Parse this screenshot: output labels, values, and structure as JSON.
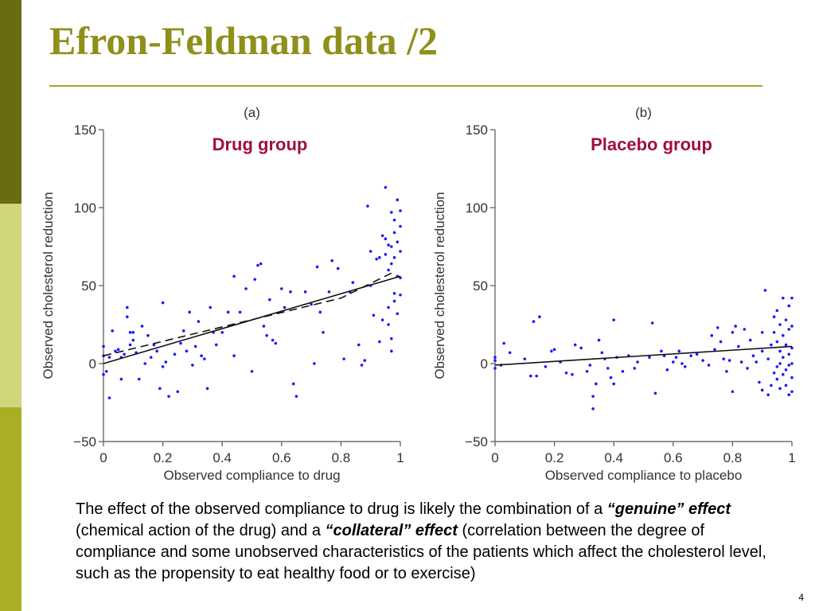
{
  "slide": {
    "title": "Efron-Feldman data /2",
    "page_number": "4",
    "body": {
      "part1": "The effect of the observed compliance to drug is likely the combination of a ",
      "genuine": "“genuine” effect",
      "part2": " (chemical action of the drug) and a ",
      "collateral": "“collateral” effect",
      "part3": " (correlation between the degree of compliance and some unobserved characteristics of the patients which affect the cholesterol level, such as the propensity to eat healthy food or to exercise)"
    },
    "colors": {
      "title": "#8f8f1c",
      "group_label": "#a0103c",
      "points": "#1a1aff",
      "rule": "#a8a22a"
    }
  },
  "chart_data": [
    {
      "type": "scatter",
      "panel": "(a)",
      "group_label": "Drug group",
      "xlabel": "Observed compliance to drug",
      "ylabel": "Observed cholesterol reduction",
      "xlim": [
        0,
        1
      ],
      "ylim": [
        -50,
        150
      ],
      "xticks": [
        "0",
        "0.2",
        "0.4",
        "0.6",
        "0.8",
        "1"
      ],
      "yticks": [
        "−50",
        "0",
        "50",
        "100",
        "150"
      ],
      "fits": [
        {
          "style": "solid",
          "x": [
            0,
            1
          ],
          "y": [
            0,
            56
          ]
        },
        {
          "style": "dashed",
          "x": [
            0,
            0.8,
            0.97
          ],
          "y": [
            5,
            42,
            58
          ]
        }
      ],
      "points": [
        [
          0.0,
          -7
        ],
        [
          0.0,
          5
        ],
        [
          0.0,
          11
        ],
        [
          0.01,
          -5
        ],
        [
          0.02,
          4
        ],
        [
          0.02,
          -22
        ],
        [
          0.03,
          21
        ],
        [
          0.04,
          8
        ],
        [
          0.05,
          9
        ],
        [
          0.06,
          4
        ],
        [
          0.06,
          -10
        ],
        [
          0.07,
          6
        ],
        [
          0.08,
          30
        ],
        [
          0.08,
          36
        ],
        [
          0.09,
          20
        ],
        [
          0.09,
          12
        ],
        [
          0.1,
          15
        ],
        [
          0.1,
          20
        ],
        [
          0.11,
          7
        ],
        [
          0.12,
          -10
        ],
        [
          0.13,
          24
        ],
        [
          0.14,
          0
        ],
        [
          0.15,
          18
        ],
        [
          0.16,
          4
        ],
        [
          0.17,
          12
        ],
        [
          0.18,
          8
        ],
        [
          0.19,
          -16
        ],
        [
          0.2,
          -2
        ],
        [
          0.21,
          1
        ],
        [
          0.22,
          -21
        ],
        [
          0.2,
          39
        ],
        [
          0.24,
          6
        ],
        [
          0.25,
          -18
        ],
        [
          0.26,
          13
        ],
        [
          0.27,
          21
        ],
        [
          0.28,
          8
        ],
        [
          0.29,
          33
        ],
        [
          0.3,
          -1
        ],
        [
          0.31,
          11
        ],
        [
          0.32,
          27
        ],
        [
          0.33,
          5
        ],
        [
          0.34,
          3
        ],
        [
          0.35,
          -16
        ],
        [
          0.36,
          36
        ],
        [
          0.37,
          20
        ],
        [
          0.38,
          12
        ],
        [
          0.4,
          20
        ],
        [
          0.42,
          33
        ],
        [
          0.44,
          5
        ],
        [
          0.44,
          56
        ],
        [
          0.46,
          33
        ],
        [
          0.48,
          48
        ],
        [
          0.5,
          -5
        ],
        [
          0.51,
          54
        ],
        [
          0.52,
          63
        ],
        [
          0.53,
          64
        ],
        [
          0.54,
          24
        ],
        [
          0.55,
          18
        ],
        [
          0.56,
          41
        ],
        [
          0.57,
          15
        ],
        [
          0.58,
          13
        ],
        [
          0.6,
          48
        ],
        [
          0.61,
          36
        ],
        [
          0.63,
          46
        ],
        [
          0.64,
          -13
        ],
        [
          0.65,
          -21
        ],
        [
          0.68,
          46
        ],
        [
          0.7,
          38
        ],
        [
          0.71,
          0
        ],
        [
          0.72,
          62
        ],
        [
          0.73,
          33
        ],
        [
          0.74,
          20
        ],
        [
          0.76,
          46
        ],
        [
          0.77,
          66
        ],
        [
          0.79,
          61
        ],
        [
          0.81,
          3
        ],
        [
          0.83,
          46
        ],
        [
          0.84,
          52
        ],
        [
          0.86,
          12
        ],
        [
          0.87,
          -1
        ],
        [
          0.88,
          2
        ],
        [
          0.89,
          101
        ],
        [
          0.9,
          72
        ],
        [
          0.9,
          50
        ],
        [
          0.91,
          31
        ],
        [
          0.92,
          67
        ],
        [
          0.93,
          68
        ],
        [
          0.93,
          14
        ],
        [
          0.94,
          82
        ],
        [
          0.94,
          28
        ],
        [
          0.95,
          113
        ],
        [
          0.95,
          80
        ],
        [
          0.95,
          70
        ],
        [
          0.96,
          76
        ],
        [
          0.96,
          60
        ],
        [
          0.96,
          36
        ],
        [
          0.96,
          25
        ],
        [
          0.97,
          97
        ],
        [
          0.97,
          75
        ],
        [
          0.97,
          64
        ],
        [
          0.97,
          16
        ],
        [
          0.97,
          8
        ],
        [
          0.98,
          92
        ],
        [
          0.98,
          84
        ],
        [
          0.98,
          68
        ],
        [
          0.98,
          45
        ],
        [
          0.98,
          40
        ],
        [
          0.99,
          105
        ],
        [
          0.99,
          78
        ],
        [
          0.99,
          56
        ],
        [
          0.99,
          32
        ],
        [
          1.0,
          98
        ],
        [
          1.0,
          88
        ],
        [
          1.0,
          72
        ],
        [
          1.0,
          55
        ],
        [
          1.0,
          44
        ]
      ]
    },
    {
      "type": "scatter",
      "panel": "(b)",
      "group_label": "Placebo group",
      "xlabel": "Observed compliance to placebo",
      "ylabel": "Observed cholesterol reduction",
      "xlim": [
        0,
        1
      ],
      "ylim": [
        -50,
        150
      ],
      "xticks": [
        "0",
        "0.2",
        "0.4",
        "0.6",
        "0.8",
        "1"
      ],
      "yticks": [
        "−50",
        "0",
        "50",
        "100",
        "150"
      ],
      "fits": [
        {
          "style": "solid",
          "x": [
            0,
            1
          ],
          "y": [
            -1,
            11
          ]
        }
      ],
      "points": [
        [
          0.0,
          -3
        ],
        [
          0.0,
          2
        ],
        [
          0.0,
          4
        ],
        [
          0.02,
          -1
        ],
        [
          0.03,
          13
        ],
        [
          0.05,
          7
        ],
        [
          0.1,
          3
        ],
        [
          0.12,
          -8
        ],
        [
          0.13,
          27
        ],
        [
          0.14,
          -8
        ],
        [
          0.15,
          30
        ],
        [
          0.17,
          -2
        ],
        [
          0.19,
          8
        ],
        [
          0.2,
          9
        ],
        [
          0.22,
          1
        ],
        [
          0.24,
          -6
        ],
        [
          0.26,
          -7
        ],
        [
          0.27,
          12
        ],
        [
          0.29,
          10
        ],
        [
          0.31,
          -5
        ],
        [
          0.32,
          -1
        ],
        [
          0.33,
          -21
        ],
        [
          0.33,
          -29
        ],
        [
          0.34,
          -13
        ],
        [
          0.35,
          15
        ],
        [
          0.36,
          7
        ],
        [
          0.37,
          3
        ],
        [
          0.38,
          -3
        ],
        [
          0.39,
          -9
        ],
        [
          0.4,
          -13
        ],
        [
          0.4,
          28
        ],
        [
          0.41,
          4
        ],
        [
          0.43,
          -5
        ],
        [
          0.45,
          5
        ],
        [
          0.47,
          -3
        ],
        [
          0.48,
          1
        ],
        [
          0.52,
          4
        ],
        [
          0.53,
          26
        ],
        [
          0.54,
          -19
        ],
        [
          0.56,
          8
        ],
        [
          0.57,
          5
        ],
        [
          0.58,
          -4
        ],
        [
          0.6,
          1
        ],
        [
          0.61,
          4
        ],
        [
          0.62,
          8
        ],
        [
          0.63,
          0
        ],
        [
          0.64,
          -2
        ],
        [
          0.66,
          5
        ],
        [
          0.68,
          6
        ],
        [
          0.7,
          2
        ],
        [
          0.72,
          -1
        ],
        [
          0.73,
          18
        ],
        [
          0.74,
          9
        ],
        [
          0.75,
          23
        ],
        [
          0.76,
          14
        ],
        [
          0.77,
          3
        ],
        [
          0.78,
          -5
        ],
        [
          0.79,
          2
        ],
        [
          0.8,
          20
        ],
        [
          0.8,
          -18
        ],
        [
          0.81,
          24
        ],
        [
          0.82,
          11
        ],
        [
          0.83,
          1
        ],
        [
          0.84,
          22
        ],
        [
          0.85,
          -3
        ],
        [
          0.86,
          15
        ],
        [
          0.87,
          5
        ],
        [
          0.88,
          1
        ],
        [
          0.89,
          -12
        ],
        [
          0.9,
          -17
        ],
        [
          0.9,
          20
        ],
        [
          0.9,
          8
        ],
        [
          0.91,
          47
        ],
        [
          0.92,
          -20
        ],
        [
          0.92,
          3
        ],
        [
          0.93,
          -14
        ],
        [
          0.93,
          12
        ],
        [
          0.94,
          30
        ],
        [
          0.94,
          20
        ],
        [
          0.94,
          -6
        ],
        [
          0.95,
          34
        ],
        [
          0.95,
          14
        ],
        [
          0.95,
          -2
        ],
        [
          0.95,
          -10
        ],
        [
          0.96,
          25
        ],
        [
          0.96,
          8
        ],
        [
          0.96,
          0
        ],
        [
          0.96,
          -16
        ],
        [
          0.97,
          42
        ],
        [
          0.97,
          18
        ],
        [
          0.97,
          4
        ],
        [
          0.97,
          -7
        ],
        [
          0.98,
          28
        ],
        [
          0.98,
          12
        ],
        [
          0.98,
          -4
        ],
        [
          0.98,
          -14
        ],
        [
          0.99,
          37
        ],
        [
          0.99,
          22
        ],
        [
          0.99,
          6
        ],
        [
          0.99,
          -1
        ],
        [
          0.99,
          -20
        ],
        [
          1.0,
          42
        ],
        [
          1.0,
          24
        ],
        [
          1.0,
          10
        ],
        [
          1.0,
          0
        ],
        [
          1.0,
          -9
        ],
        [
          1.0,
          -18
        ]
      ]
    }
  ]
}
